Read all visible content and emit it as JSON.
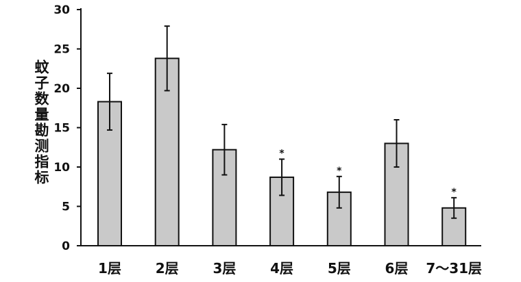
{
  "chart_data": {
    "type": "bar",
    "y_label": "蚊子数量勘测指标",
    "categories": [
      "1层",
      "2层",
      "3层",
      "4层",
      "5层",
      "6层",
      "7～31层"
    ],
    "values": [
      18.3,
      23.8,
      12.2,
      8.7,
      6.8,
      13.0,
      4.8
    ],
    "errors": [
      3.6,
      4.1,
      3.2,
      2.3,
      2.0,
      3.0,
      1.3
    ],
    "annotations": [
      null,
      null,
      null,
      "*",
      "*",
      null,
      "*"
    ],
    "color": "#c9c9c9",
    "ylim": [
      0,
      30
    ],
    "yticks": [
      0,
      5,
      10,
      15,
      20,
      25,
      30
    ]
  }
}
